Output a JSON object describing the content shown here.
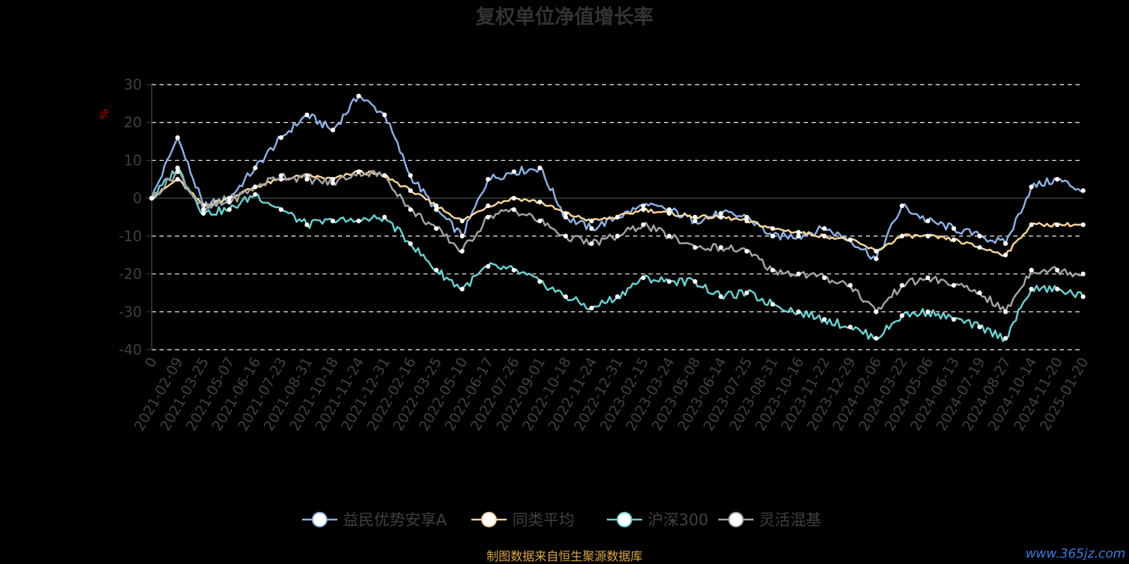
{
  "chart_data": {
    "type": "line",
    "title": "复权单位净值增长率",
    "ylabel": "%",
    "ylim": [
      -40,
      30
    ],
    "yticks": [
      30,
      20,
      10,
      0,
      -10,
      -20,
      -30,
      -40
    ],
    "grid": true,
    "legend_position": "bottom",
    "x": [
      "0",
      "2021-02-09",
      "2021-03-25",
      "2021-05-07",
      "2021-06-16",
      "2021-07-23",
      "2021-08-31",
      "2021-10-18",
      "2021-11-24",
      "2021-12-31",
      "2022-02-16",
      "2022-03-25",
      "2022-05-10",
      "2022-06-17",
      "2022-07-26",
      "2022-09-01",
      "2022-10-18",
      "2022-11-24",
      "2022-12-31",
      "2023-02-15",
      "2023-03-24",
      "2023-05-08",
      "2023-06-14",
      "2023-07-25",
      "2023-08-31",
      "2023-10-16",
      "2023-11-22",
      "2023-12-29",
      "2024-02-06",
      "2024-03-22",
      "2024-05-06",
      "2024-06-13",
      "2024-07-19",
      "2024-08-27",
      "2024-10-14",
      "2024-11-20",
      "2025-01-20"
    ],
    "series": [
      {
        "name": "益民优势安享A",
        "color": "#8fb0e0",
        "values": [
          0,
          16,
          -2,
          0,
          8,
          16,
          22,
          18,
          27,
          22,
          6,
          -3,
          -10,
          5,
          7,
          8,
          -5,
          -8,
          -5,
          -2,
          -3,
          -6,
          -4,
          -5,
          -10,
          -10,
          -8,
          -11,
          -16,
          -2,
          -6,
          -8,
          -10,
          -12,
          3,
          5,
          2
        ]
      },
      {
        "name": "同类平均",
        "color": "#f5d49b",
        "values": [
          0,
          5,
          -2,
          0,
          3,
          5,
          6,
          5,
          7,
          6,
          2,
          -2,
          -6,
          -2,
          0,
          -1,
          -4,
          -6,
          -5,
          -3,
          -4,
          -5,
          -5,
          -6,
          -8,
          -9,
          -10,
          -11,
          -14,
          -10,
          -10,
          -11,
          -13,
          -15,
          -7,
          -7,
          -7
        ]
      },
      {
        "name": "沪深300",
        "color": "#6ccfcf",
        "values": [
          0,
          8,
          -4,
          -3,
          1,
          -3,
          -7,
          -6,
          -6,
          -5,
          -12,
          -19,
          -24,
          -18,
          -19,
          -22,
          -26,
          -29,
          -26,
          -21,
          -22,
          -22,
          -26,
          -25,
          -28,
          -30,
          -32,
          -34,
          -37,
          -31,
          -30,
          -32,
          -34,
          -37,
          -24,
          -24,
          -26
        ]
      },
      {
        "name": "灵活混基",
        "color": "#a3a3a3",
        "values": [
          0,
          7,
          -3,
          -1,
          3,
          6,
          5,
          4,
          7,
          6,
          -3,
          -8,
          -14,
          -5,
          -3,
          -6,
          -10,
          -12,
          -10,
          -7,
          -10,
          -13,
          -13,
          -14,
          -19,
          -20,
          -21,
          -23,
          -30,
          -23,
          -21,
          -23,
          -25,
          -30,
          -19,
          -19,
          -20
        ]
      }
    ],
    "source_note": "制图数据来自恒生聚源数据库",
    "watermark": "www.365jz.com"
  }
}
